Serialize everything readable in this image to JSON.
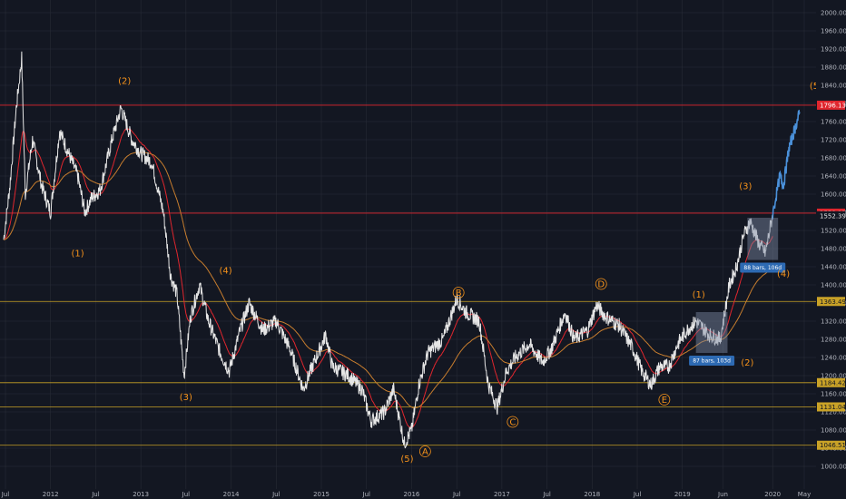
{
  "chart_data": {
    "type": "candlestick",
    "grid": true,
    "colors": {
      "background": "#131722",
      "grid": "#2a2e39",
      "axis_text": "#b2b5be",
      "price": "#e6e6e6",
      "ema_fast": "#e0262e",
      "ema_slow": "#c77d2e",
      "level_line": "#c9a227",
      "resistance_line": "#e0262e",
      "wave_label": "#f7931a",
      "projection": "#4a90d9",
      "range_box": "#7f8ba6",
      "range_label_bg": "#2d6ab3"
    },
    "x_axis": {
      "ticks": [
        "Jul",
        "2012",
        "Jul",
        "2013",
        "Jul",
        "2014",
        "Jul",
        "2015",
        "Jul",
        "2016",
        "Jul",
        "2017",
        "Jul",
        "2018",
        "Jul",
        "2019",
        "Jun",
        "2020",
        "May"
      ],
      "tick_dates": [
        2011.5,
        2012.0,
        2012.5,
        2013.0,
        2013.5,
        2014.0,
        2014.5,
        2015.0,
        2015.5,
        2016.0,
        2016.5,
        2017.0,
        2017.5,
        2018.0,
        2018.5,
        2019.0,
        2019.45,
        2020.0,
        2020.35
      ]
    },
    "y_axis": {
      "range": [
        965,
        2020
      ],
      "ticks": [
        "2000.00",
        "1960.00",
        "1920.00",
        "1880.00",
        "1840.00",
        "1800.00",
        "1760.00",
        "1720.00",
        "1680.00",
        "1640.00",
        "1600.00",
        "1560.00",
        "1520.00",
        "1480.00",
        "1440.00",
        "1400.00",
        "1360.00",
        "1320.00",
        "1280.00",
        "1240.00",
        "1200.00",
        "1160.00",
        "1120.00",
        "1080.00",
        "1040.00",
        "1000.00"
      ]
    },
    "price_anchors": [
      [
        2011.48,
        1500
      ],
      [
        2011.55,
        1620
      ],
      [
        2011.62,
        1790
      ],
      [
        2011.68,
        1900
      ],
      [
        2011.72,
        1600
      ],
      [
        2011.8,
        1720
      ],
      [
        2011.9,
        1620
      ],
      [
        2012.0,
        1560
      ],
      [
        2012.1,
        1740
      ],
      [
        2012.2,
        1690
      ],
      [
        2012.3,
        1640
      ],
      [
        2012.38,
        1560
      ],
      [
        2012.45,
        1590
      ],
      [
        2012.55,
        1610
      ],
      [
        2012.68,
        1720
      ],
      [
        2012.78,
        1790
      ],
      [
        2012.9,
        1720
      ],
      [
        2013.0,
        1690
      ],
      [
        2013.12,
        1670
      ],
      [
        2013.25,
        1560
      ],
      [
        2013.33,
        1420
      ],
      [
        2013.4,
        1380
      ],
      [
        2013.48,
        1200
      ],
      [
        2013.55,
        1330
      ],
      [
        2013.65,
        1400
      ],
      [
        2013.75,
        1320
      ],
      [
        2013.88,
        1250
      ],
      [
        2013.98,
        1210
      ],
      [
        2014.1,
        1300
      ],
      [
        2014.2,
        1360
      ],
      [
        2014.35,
        1300
      ],
      [
        2014.5,
        1320
      ],
      [
        2014.65,
        1260
      ],
      [
        2014.8,
        1170
      ],
      [
        2014.88,
        1210
      ],
      [
        2015.05,
        1290
      ],
      [
        2015.12,
        1220
      ],
      [
        2015.3,
        1200
      ],
      [
        2015.45,
        1170
      ],
      [
        2015.55,
        1100
      ],
      [
        2015.7,
        1120
      ],
      [
        2015.8,
        1170
      ],
      [
        2015.92,
        1050
      ],
      [
        2016.0,
        1080
      ],
      [
        2016.08,
        1180
      ],
      [
        2016.18,
        1250
      ],
      [
        2016.35,
        1280
      ],
      [
        2016.5,
        1370
      ],
      [
        2016.6,
        1340
      ],
      [
        2016.75,
        1320
      ],
      [
        2016.85,
        1180
      ],
      [
        2016.95,
        1130
      ],
      [
        2017.05,
        1210
      ],
      [
        2017.15,
        1240
      ],
      [
        2017.3,
        1270
      ],
      [
        2017.45,
        1230
      ],
      [
        2017.55,
        1260
      ],
      [
        2017.7,
        1340
      ],
      [
        2017.8,
        1280
      ],
      [
        2017.95,
        1300
      ],
      [
        2018.05,
        1355
      ],
      [
        2018.15,
        1330
      ],
      [
        2018.3,
        1310
      ],
      [
        2018.45,
        1260
      ],
      [
        2018.55,
        1210
      ],
      [
        2018.65,
        1180
      ],
      [
        2018.75,
        1220
      ],
      [
        2018.85,
        1220
      ],
      [
        2018.95,
        1270
      ],
      [
        2019.05,
        1300
      ],
      [
        2019.15,
        1320
      ],
      [
        2019.3,
        1290
      ],
      [
        2019.42,
        1280
      ],
      [
        2019.52,
        1400
      ],
      [
        2019.6,
        1440
      ],
      [
        2019.68,
        1510
      ],
      [
        2019.75,
        1540
      ],
      [
        2019.85,
        1490
      ],
      [
        2019.92,
        1470
      ],
      [
        2020.0,
        1555
      ]
    ],
    "projection": [
      [
        2020.0,
        1555
      ],
      [
        2020.08,
        1640
      ],
      [
        2020.12,
        1620
      ],
      [
        2020.18,
        1700
      ],
      [
        2020.24,
        1740
      ],
      [
        2020.3,
        1780
      ]
    ],
    "horizontal_levels": [
      {
        "price": 1796.13,
        "label": "1796.13",
        "style": "resistance"
      },
      {
        "price": 1558.12,
        "label": "1558.12",
        "style": "resistance"
      },
      {
        "price": 1363.49,
        "label": "1363.49",
        "style": "support"
      },
      {
        "price": 1184.42,
        "label": "1184.42",
        "style": "support"
      },
      {
        "price": 1131.04,
        "label": "1131.04",
        "style": "support"
      },
      {
        "price": 1046.51,
        "label": "1046.51",
        "style": "support"
      }
    ],
    "current_price": {
      "price": 1552.39,
      "label": "1552.39"
    },
    "wave_labels": [
      {
        "text": "(2)",
        "date": 2012.82,
        "price": 1843
      },
      {
        "text": "(1)",
        "date": 2012.3,
        "price": 1463
      },
      {
        "text": "(4)",
        "date": 2013.94,
        "price": 1425
      },
      {
        "text": "(3)",
        "date": 2013.5,
        "price": 1146
      },
      {
        "text": "(5)",
        "date": 2015.95,
        "price": 1010
      },
      {
        "text": "A",
        "date": 2016.15,
        "price": 1026,
        "circled": true
      },
      {
        "text": "B",
        "date": 2016.52,
        "price": 1376,
        "circled": true
      },
      {
        "text": "C",
        "date": 2017.12,
        "price": 1091,
        "circled": true
      },
      {
        "text": "D",
        "date": 2018.1,
        "price": 1395,
        "circled": true
      },
      {
        "text": "E",
        "date": 2018.8,
        "price": 1140,
        "circled": true
      },
      {
        "text": "(1)",
        "date": 2019.18,
        "price": 1372
      },
      {
        "text": "(2)",
        "date": 2019.72,
        "price": 1222
      },
      {
        "text": "(3)",
        "date": 2019.7,
        "price": 1611
      },
      {
        "text": "(4)",
        "date": 2020.12,
        "price": 1418
      },
      {
        "text": "(5)",
        "date": 2020.48,
        "price": 1832
      }
    ],
    "range_boxes": [
      {
        "label": "87 bars, 103d",
        "date_start": 2019.15,
        "date_end": 2019.5,
        "price_low": 1250,
        "price_high": 1340
      },
      {
        "label": "88 bars, 106d",
        "date_start": 2019.72,
        "date_end": 2020.06,
        "price_low": 1455,
        "price_high": 1548
      }
    ]
  }
}
